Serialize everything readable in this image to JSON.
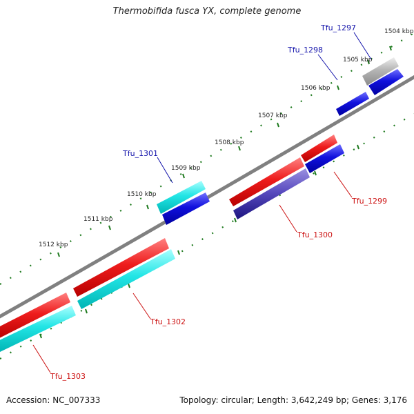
{
  "title": "Thermobifida fusca YX, complete genome",
  "footer": {
    "accession": "Accession: NC_007333",
    "topology": "Topology: circular; Length: 3,642,249 bp; Genes: 3,176"
  },
  "colors": {
    "backbone": "#808080",
    "ticks": "#1e7a1e",
    "forward_cds": "#ee1c1c",
    "forward_other": "#22e5e5",
    "reverse_cds": "#1010dd",
    "reverse_other": "#22e5e5",
    "pseudo": "#b5b5b5",
    "overlap": "#4d3fb0",
    "label_forward": "#cc1111",
    "label_reverse": "#1111aa"
  },
  "tick_labels": [
    "1504 kbp",
    "1505 kbp",
    "1506 kbp",
    "1507 kbp",
    "1508 kbp",
    "1509 kbp",
    "1510 kbp",
    "1511 kbp",
    "1512 kbp"
  ],
  "gene_labels": [
    "Tfu_1297",
    "Tfu_1298",
    "Tfu_1299",
    "Tfu_1300",
    "Tfu_1301",
    "Tfu_1302",
    "Tfu_1303"
  ]
}
